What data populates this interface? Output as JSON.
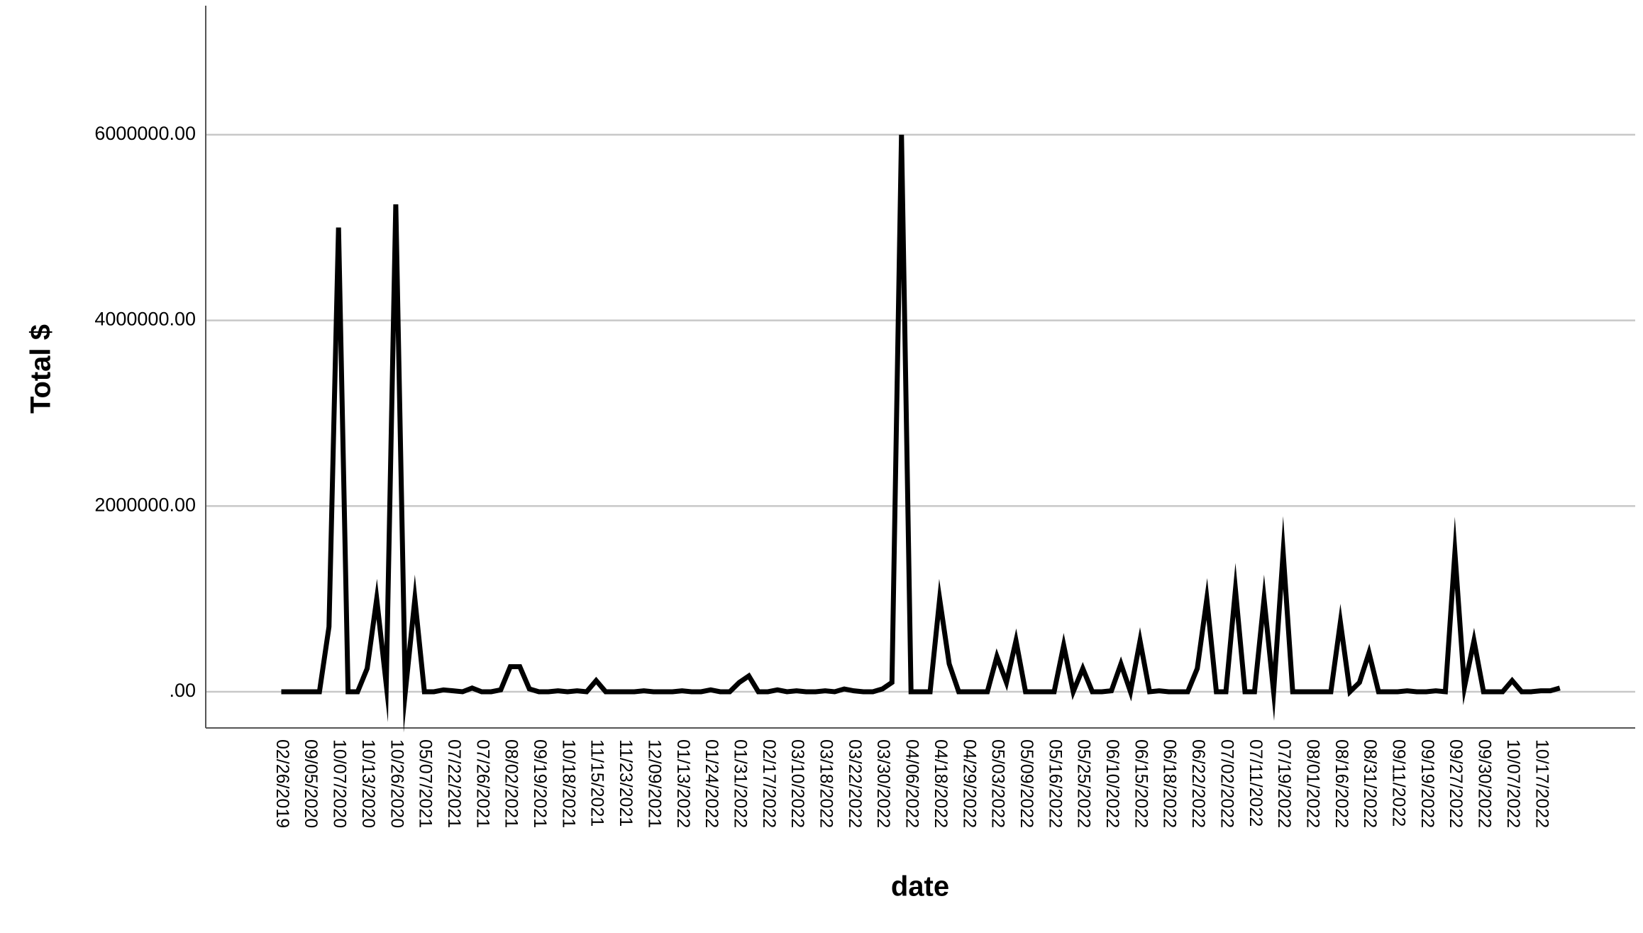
{
  "chart_data": {
    "type": "line",
    "x_label": "date",
    "y_label": "Total $",
    "categories": [
      "02/26/2019",
      null,
      null,
      "09/05/2020",
      null,
      null,
      "10/07/2020",
      null,
      null,
      "10/13/2020",
      null,
      null,
      "10/26/2020",
      null,
      null,
      "05/07/2021",
      null,
      null,
      "07/22/2021",
      null,
      null,
      "07/26/2021",
      null,
      null,
      "08/02/2021",
      null,
      null,
      "09/19/2021",
      null,
      null,
      "10/18/2021",
      null,
      null,
      "11/15/2021",
      null,
      null,
      "11/23/2021",
      null,
      null,
      "12/09/2021",
      null,
      null,
      "01/13/2022",
      null,
      null,
      "01/24/2022",
      null,
      null,
      "01/31/2022",
      null,
      null,
      "02/17/2022",
      null,
      null,
      "03/10/2022",
      null,
      null,
      "03/18/2022",
      null,
      null,
      "03/22/2022",
      null,
      null,
      "03/30/2022",
      null,
      null,
      "04/06/2022",
      null,
      null,
      "04/18/2022",
      null,
      null,
      "04/29/2022",
      null,
      null,
      "05/03/2022",
      null,
      null,
      "05/09/2022",
      null,
      null,
      "05/16/2022",
      null,
      null,
      "05/25/2022",
      null,
      null,
      "06/10/2022",
      null,
      null,
      "06/15/2022",
      null,
      null,
      "06/18/2022",
      null,
      null,
      "06/22/2022",
      null,
      null,
      "07/02/2022",
      null,
      null,
      "07/11/2022",
      null,
      null,
      "07/19/2022",
      null,
      null,
      "08/01/2022",
      null,
      null,
      "08/16/2022",
      null,
      null,
      "08/31/2022",
      null,
      null,
      "09/11/2022",
      null,
      null,
      "09/19/2022",
      null,
      null,
      "09/27/2022",
      null,
      null,
      "09/30/2022",
      null,
      null,
      "10/07/2022",
      null,
      null,
      "10/17/2022",
      null,
      null
    ],
    "values": [
      0,
      0,
      0,
      0,
      0,
      700000,
      5000000,
      0,
      0,
      250000,
      1000000,
      80000,
      5250000,
      0,
      1000000,
      0,
      0,
      20000,
      10000,
      0,
      40000,
      0,
      0,
      20000,
      270000,
      270000,
      30000,
      0,
      0,
      10000,
      0,
      10000,
      0,
      120000,
      0,
      0,
      0,
      0,
      10000,
      0,
      0,
      0,
      10000,
      0,
      0,
      20000,
      0,
      0,
      100000,
      170000,
      0,
      0,
      20000,
      0,
      10000,
      0,
      0,
      10000,
      0,
      30000,
      10000,
      0,
      0,
      30000,
      100000,
      6000000,
      0,
      0,
      0,
      1000000,
      300000,
      0,
      0,
      0,
      0,
      380000,
      100000,
      550000,
      0,
      0,
      0,
      0,
      500000,
      0,
      250000,
      0,
      0,
      10000,
      300000,
      0,
      550000,
      0,
      10000,
      0,
      0,
      0,
      250000,
      1000000,
      0,
      0,
      1100000,
      0,
      0,
      1000000,
      0,
      1500000,
      0,
      0,
      0,
      0,
      0,
      750000,
      0,
      100000,
      420000,
      0,
      0,
      0,
      10000,
      0,
      0,
      10000,
      0,
      1500000,
      50000,
      550000,
      0,
      0,
      0,
      120000,
      0,
      0,
      10000,
      10000,
      40000
    ],
    "color": "#000000",
    "ylim": [
      -390000,
      7390000
    ],
    "yticks": [
      {
        "value": 0,
        "label": ".00"
      },
      {
        "value": 2000000,
        "label": "2000000.00"
      },
      {
        "value": 4000000,
        "label": "4000000.00"
      },
      {
        "value": 6000000,
        "label": "6000000.00"
      }
    ],
    "grid": true
  }
}
